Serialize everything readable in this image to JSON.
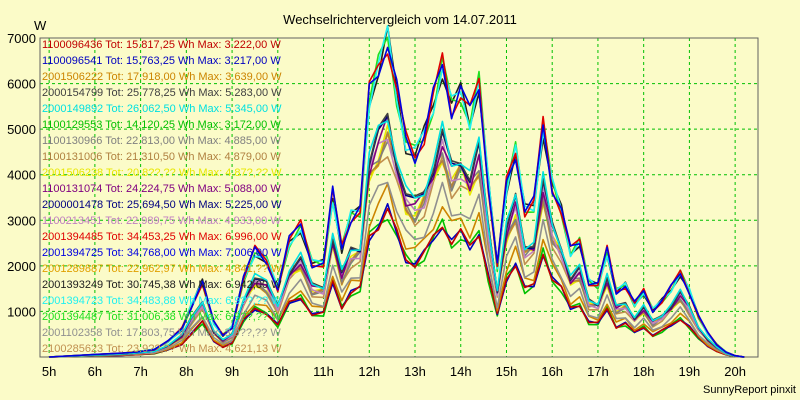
{
  "chart_data": {
    "type": "line",
    "title": "Wechselrichtervergleich vom 14.07.2011",
    "ylabel": "W",
    "footer": "SunnyReport pinxit",
    "ylim": [
      0,
      7000
    ],
    "xlim": [
      4.8,
      20.5
    ],
    "x_ticks": [
      {
        "x": 5,
        "label": "5h"
      },
      {
        "x": 6,
        "label": "6h"
      },
      {
        "x": 7,
        "label": "7h"
      },
      {
        "x": 8,
        "label": "8h"
      },
      {
        "x": 9,
        "label": "9h"
      },
      {
        "x": 10,
        "label": "10h"
      },
      {
        "x": 11,
        "label": "11h"
      },
      {
        "x": 12,
        "label": "12h"
      },
      {
        "x": 13,
        "label": "13h"
      },
      {
        "x": 14,
        "label": "14h"
      },
      {
        "x": 15,
        "label": "15h"
      },
      {
        "x": 16,
        "label": "16h"
      },
      {
        "x": 17,
        "label": "17h"
      },
      {
        "x": 18,
        "label": "18h"
      },
      {
        "x": 19,
        "label": "19h"
      },
      {
        "x": 20,
        "label": "20h"
      }
    ],
    "y_ticks": [
      1000,
      2000,
      3000,
      4000,
      5000,
      6000,
      7000
    ],
    "grid": true,
    "legend_placement": "top-left",
    "x": [
      5.0,
      6.0,
      6.6,
      7.0,
      7.3,
      7.6,
      7.9,
      8.1,
      8.35,
      8.6,
      8.8,
      9.0,
      9.25,
      9.5,
      9.75,
      10.0,
      10.25,
      10.5,
      10.75,
      11.0,
      11.2,
      11.4,
      11.6,
      11.8,
      12.0,
      12.2,
      12.4,
      12.6,
      12.8,
      13.0,
      13.2,
      13.4,
      13.6,
      13.8,
      14.0,
      14.2,
      14.4,
      14.6,
      14.8,
      15.0,
      15.2,
      15.4,
      15.6,
      15.8,
      16.0,
      16.2,
      16.4,
      16.6,
      16.8,
      17.0,
      17.2,
      17.4,
      17.6,
      17.8,
      18.0,
      18.2,
      18.4,
      18.6,
      18.8,
      19.0,
      19.2,
      19.4,
      19.6,
      19.8,
      20.0,
      20.2
    ],
    "series": [
      {
        "name": "1100096436",
        "label": "1100096436 Tot: 15.817,25 Wh Max: 3.222,00 W",
        "color": "#c00000",
        "peak": 3222,
        "energy": 15817.25
      },
      {
        "name": "1100096541",
        "label": "1100096541 Tot: 15.763,25 Wh Max: 3.217,00 W",
        "color": "#0000c0",
        "peak": 3217,
        "energy": 15763.25
      },
      {
        "name": "2001506222",
        "label": "2001506222 Tot: 17.918,00 Wh Max: 3.639,00 W",
        "color": "#cc8400",
        "peak": 3639,
        "energy": 17918.0
      },
      {
        "name": "2000154799",
        "label": "2000154799 Tot: 25.778,25 Wh Max: 5.283,00 W",
        "color": "#404040",
        "peak": 5283,
        "energy": 25778.25
      },
      {
        "name": "2000149892",
        "label": "2000149892 Tot: 26.062,50 Wh Max: 5.345,00 W",
        "color": "#00e0e0",
        "peak": 5345,
        "energy": 26062.5
      },
      {
        "name": "1100129553",
        "label": "1100129553 Tot: 14.120,25 Wh Max: 3.172,00 W",
        "color": "#00c000",
        "peak": 3172,
        "energy": 14120.25
      },
      {
        "name": "1100130966",
        "label": "1100130966 Tot: 22.813,00 Wh Max: 4.885,00 W",
        "color": "#808080",
        "peak": 4885,
        "energy": 22813.0
      },
      {
        "name": "1100131006",
        "label": "1100131006 Tot: 21.310,50 Wh Max: 4.879,00 W",
        "color": "#b08040",
        "peak": 4879,
        "energy": 21310.5
      },
      {
        "name": "2001506238",
        "label": "2001506238 Tot: 20.8??,?? Wh Max: 4.87?,?? W",
        "color": "#e8e800",
        "peak": 4870,
        "energy": 20800.0
      },
      {
        "name": "1100131074",
        "label": "1100131074 Tot: 24.224,75 Wh Max: 5.088,00 W",
        "color": "#800080",
        "peak": 5088,
        "energy": 24224.75
      },
      {
        "name": "2000001478",
        "label": "2000001478 Tot: 25.694,50 Wh Max: 5.225,00 W",
        "color": "#000080",
        "peak": 5225,
        "energy": 25694.5
      },
      {
        "name": "1100213451",
        "label": "1100213451 Tot: 22.989,75 Wh Max: 4.933,00 W",
        "color": "#c080c0",
        "peak": 4933,
        "energy": 22989.75
      },
      {
        "name": "2001394485",
        "label": "2001394485 Tot: 34.453,25 Wh Max: 6.996,00 W",
        "color": "#e00000",
        "peak": 6996,
        "energy": 34453.25
      },
      {
        "name": "2001394725",
        "label": "2001394725 Tot: 34.768,00 Wh Max: 7.006,00 W",
        "color": "#0000e0",
        "peak": 7006,
        "energy": 34768.0
      },
      {
        "name": "2001289887",
        "label": "2001289887 Tot: 22.962,97 Wh Max: 4.841,?? W",
        "color": "#e0a000",
        "peak": 4841,
        "energy": 22962.97
      },
      {
        "name": "2001393249",
        "label": "2001393249 Tot: 30.745,38 Wh Max: 6.942,00 W",
        "color": "#202020",
        "peak": 6942,
        "energy": 30745.38
      },
      {
        "name": "2001394723",
        "label": "2001394723 Tot: 34.483,88 Wh Max: 6.9??,?? W",
        "color": "#20f0f0",
        "peak": 6960,
        "energy": 34483.88
      },
      {
        "name": "2001394487",
        "label": "2001394487 Tot: 31.006,38 Wh Max: 6.9??,?? W",
        "color": "#20e020",
        "peak": 6950,
        "energy": 31006.38
      },
      {
        "name": "2001102358",
        "label": "2001102358 Tot: 17.803,75 Wh Max: 3.9??,?? W",
        "color": "#909090",
        "peak": 3959,
        "energy": 17803.75
      },
      {
        "name": "2100285623",
        "label": "2100285623 Tot: 23.9??,?? Wh Max: 4.621,13 W",
        "color": "#c09050",
        "peak": 4621,
        "energy": 23900.0
      }
    ],
    "profile": [
      0,
      40,
      60,
      90,
      120,
      250,
      450,
      800,
      1200,
      550,
      350,
      480,
      1250,
      1700,
      1550,
      1100,
      1850,
      2100,
      1500,
      1500,
      2600,
      1750,
      2250,
      2350,
      4200,
      4650,
      5100,
      4250,
      3450,
      3250,
      3550,
      4100,
      4700,
      4000,
      4250,
      3850,
      4400,
      2800,
      1450,
      2750,
      3300,
      2350,
      2450,
      3700,
      2750,
      2350,
      1700,
      1850,
      1200,
      1150,
      1700,
      1050,
      1150,
      850,
      1050,
      750,
      900,
      1100,
      1350,
      1050,
      650,
      380,
      200,
      80,
      20,
      0
    ]
  }
}
